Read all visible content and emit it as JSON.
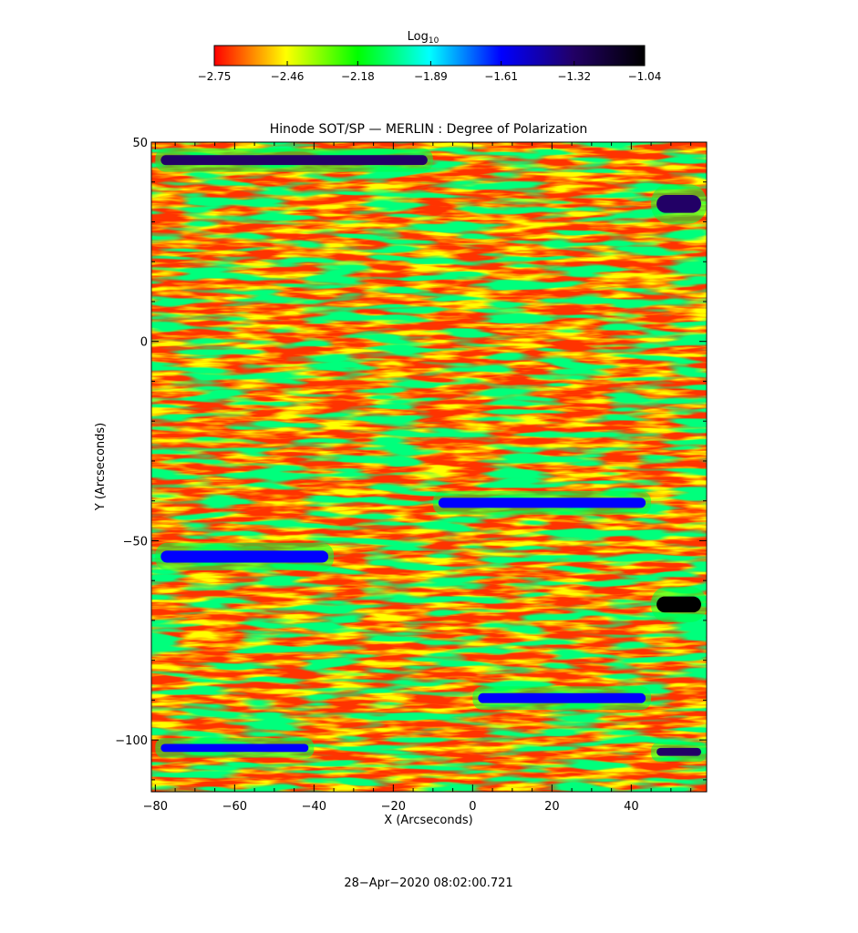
{
  "chart_data": {
    "type": "heatmap",
    "title": "Hinode SOT/SP — MERLIN : Degree of Polarization",
    "xlabel": "X (Arcseconds)",
    "ylabel": "Y (Arcseconds)",
    "xlim": [
      -81,
      59
    ],
    "ylim": [
      -113,
      50
    ],
    "xticks": [
      -80,
      -60,
      -40,
      -20,
      0,
      20,
      40
    ],
    "xtick_labels": [
      "−80",
      "−60",
      "−40",
      "−20",
      "0",
      "20",
      "40"
    ],
    "yticks": [
      50,
      0,
      -50,
      -100
    ],
    "ytick_labels": [
      "50",
      "0",
      "−50",
      "−100"
    ],
    "colorbar": {
      "label": "Log",
      "label_subscript": "10",
      "range": [
        -2.75,
        -1.04
      ],
      "ticks": [
        -2.75,
        -2.46,
        -2.18,
        -1.89,
        -1.61,
        -1.32,
        -1.04
      ],
      "tick_labels": [
        "−2.75",
        "−2.46",
        "−2.18",
        "−1.89",
        "−1.61",
        "−1.32",
        "−1.04"
      ],
      "colormap": [
        "#ff0000",
        "#ffff00",
        "#00ff00",
        "#00ffff",
        "#0000ff",
        "#220066",
        "#000000"
      ]
    },
    "features": [
      {
        "x0": -80,
        "x1": -10,
        "y0": 43,
        "y1": 48,
        "v": -1.4
      },
      {
        "x0": 45,
        "x1": 59,
        "y0": 30,
        "y1": 39,
        "v": -1.4
      },
      {
        "x0": 45,
        "x1": 59,
        "y0": -70,
        "y1": -62,
        "v": -1.15
      },
      {
        "x0": -80,
        "x1": -35,
        "y0": -57,
        "y1": -51,
        "v": -1.55
      },
      {
        "x0": -10,
        "x1": 45,
        "y0": -43,
        "y1": -38,
        "v": -1.6
      },
      {
        "x0": 0,
        "x1": 45,
        "y0": -92,
        "y1": -87,
        "v": -1.6
      },
      {
        "x0": -80,
        "x1": -40,
        "y0": -104,
        "y1": -100,
        "v": -1.75
      },
      {
        "x0": 45,
        "x1": 59,
        "y0": -105,
        "y1": -101,
        "v": -1.45
      }
    ]
  },
  "footer": {
    "timestamp": "28−Apr−2020 08:02:00.721"
  }
}
